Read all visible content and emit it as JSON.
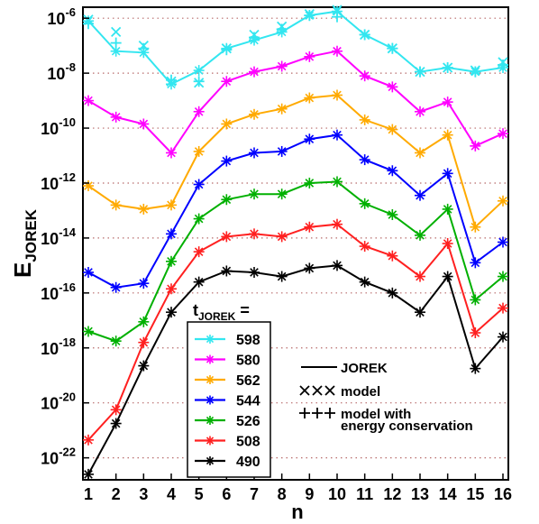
{
  "chart_data": {
    "type": "line",
    "xlabel": "n",
    "ylabel_main": "E",
    "ylabel_sub": "JOREK",
    "yscale": "log",
    "ylim_exp": [
      -22.8,
      -5.6
    ],
    "xlim": [
      1,
      16
    ],
    "x": [
      1,
      2,
      3,
      4,
      5,
      6,
      7,
      8,
      9,
      10,
      11,
      12,
      13,
      14,
      15,
      16
    ],
    "y_tick_exponents": [
      -6,
      -8,
      -10,
      -12,
      -14,
      -16,
      -18,
      -20,
      -22
    ],
    "y_tick_labels": [
      {
        "base": "10",
        "exp": "-6"
      },
      {
        "base": "10",
        "exp": "-8"
      },
      {
        "base": "10",
        "exp": "-10"
      },
      {
        "base": "10",
        "exp": "-12"
      },
      {
        "base": "10",
        "exp": "-14"
      },
      {
        "base": "10",
        "exp": "-16"
      },
      {
        "base": "10",
        "exp": "-18"
      },
      {
        "base": "10",
        "exp": "-20"
      },
      {
        "base": "10",
        "exp": "-22"
      }
    ],
    "x_tick_labels": [
      "1",
      "2",
      "3",
      "4",
      "5",
      "6",
      "7",
      "8",
      "9",
      "10",
      "11",
      "12",
      "13",
      "14",
      "15",
      "16"
    ],
    "grid": "horizontal-dotted",
    "legend_title_main": "t",
    "legend_title_sub": "JOREK",
    "legend_title_suffix": " =",
    "legend_placement": "bottom-center",
    "series": [
      {
        "name": "598",
        "color": "#33e6f0",
        "log10_y": [
          -6.1,
          -7.2,
          -7.25,
          -8.4,
          -7.9,
          -7.1,
          -6.8,
          -6.5,
          -5.9,
          -5.75,
          -6.6,
          -7.1,
          -7.95,
          -7.8,
          -7.95,
          -7.8
        ]
      },
      {
        "name": "580",
        "color": "#ff00ff",
        "log10_y": [
          -9.0,
          -9.6,
          -9.85,
          -10.9,
          -9.4,
          -8.3,
          -7.95,
          -7.75,
          -7.4,
          -7.2,
          -8.1,
          -8.5,
          -9.4,
          -9.05,
          -10.65,
          -10.2
        ]
      },
      {
        "name": "562",
        "color": "#ffaa00",
        "log10_y": [
          -12.1,
          -12.8,
          -12.95,
          -12.8,
          -10.85,
          -9.85,
          -9.5,
          -9.3,
          -8.9,
          -8.8,
          -9.7,
          -10.05,
          -10.9,
          -10.25,
          -13.6,
          -12.65
        ]
      },
      {
        "name": "544",
        "color": "#0000ff",
        "log10_y": [
          -15.25,
          -15.8,
          -15.65,
          -13.85,
          -12.05,
          -11.2,
          -10.9,
          -10.85,
          -10.4,
          -10.25,
          -11.15,
          -11.55,
          -12.45,
          -11.65,
          -14.9,
          -14.15
        ]
      },
      {
        "name": "526",
        "color": "#00b000",
        "log10_y": [
          -17.4,
          -17.75,
          -17.05,
          -14.85,
          -13.3,
          -12.6,
          -12.4,
          -12.4,
          -12.0,
          -11.95,
          -12.75,
          -13.15,
          -13.9,
          -12.95,
          -16.25,
          -15.4
        ]
      },
      {
        "name": "508",
        "color": "#ff2020",
        "log10_y": [
          -21.35,
          -20.25,
          -17.8,
          -15.85,
          -14.5,
          -13.95,
          -13.85,
          -13.95,
          -13.6,
          -13.5,
          -14.3,
          -14.65,
          -15.4,
          -14.2,
          -17.45,
          -16.55
        ]
      },
      {
        "name": "490",
        "color": "#000000",
        "log10_y": [
          -22.6,
          -20.75,
          -18.65,
          -16.7,
          -15.6,
          -15.2,
          -15.25,
          -15.4,
          -15.1,
          -15.0,
          -15.6,
          -16.0,
          -16.7,
          -15.4,
          -18.75,
          -17.6
        ]
      }
    ],
    "model_points": {
      "log10_y": [
        -6.05,
        -6.5,
        -7.0,
        -8.3,
        -8.35,
        -7.1,
        -6.6,
        -6.3,
        -5.85,
        -5.7,
        -6.6,
        -7.1,
        -7.95,
        -7.8,
        -7.9,
        -7.6
      ]
    },
    "model_energy_points": {
      "log10_y": [
        -6.2,
        -6.9,
        -7.1,
        -8.25,
        -8.3,
        -7.15,
        -6.7,
        -6.4,
        -5.9,
        -5.95,
        -6.6,
        -7.1,
        -7.95,
        -7.8,
        -7.95,
        -7.7
      ]
    },
    "legend_style": [
      {
        "label_line1": "JOREK",
        "label_line2": "",
        "marker": "line"
      },
      {
        "label_line1": "model",
        "label_line2": "",
        "marker": "xxx"
      },
      {
        "label_line1": "model with",
        "label_line2": "energy conservation",
        "marker": "+++"
      }
    ]
  }
}
